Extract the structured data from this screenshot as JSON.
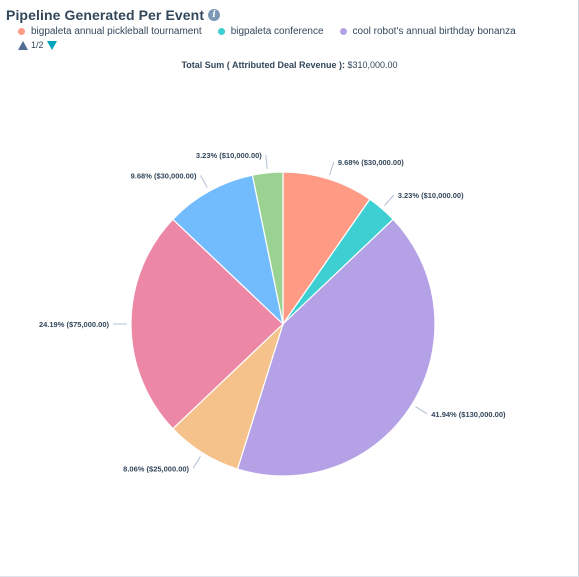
{
  "header": {
    "title": "Pipeline Generated Per Event",
    "info_icon": "info-icon"
  },
  "legend": {
    "items": [
      {
        "label": "bigpaleta annual pickleball tournament",
        "color": "#ff9a85"
      },
      {
        "label": "bigpaleta conference",
        "color": "#3ecfd2"
      },
      {
        "label": "cool robot's annual birthday bonanza",
        "color": "#b5a1e6"
      }
    ],
    "pager": "1/2"
  },
  "total": {
    "label": "Total Sum ( Attributed Deal Revenue ):",
    "value": "$310,000.00"
  },
  "chart_data": {
    "type": "pie",
    "total": 310000,
    "slices": [
      {
        "value": 30000,
        "label": "9.68% ($30,000.00)",
        "color": "#ff9a85"
      },
      {
        "value": 10000,
        "label": "3.23% ($10,000.00)",
        "color": "#3ecfd2"
      },
      {
        "value": 130000,
        "label": "41.94% ($130,000.00)",
        "color": "#b5a1e6"
      },
      {
        "value": 25000,
        "label": "8.06% ($25,000.00)",
        "color": "#f6c28b"
      },
      {
        "value": 75000,
        "label": "24.19% ($75,000.00)",
        "color": "#ec87a6"
      },
      {
        "value": 30000,
        "label": "9.68% ($30,000.00)",
        "color": "#72bbfc"
      },
      {
        "value": 10000,
        "label": "3.23% ($10,000.00)",
        "color": "#9ad391"
      }
    ]
  }
}
